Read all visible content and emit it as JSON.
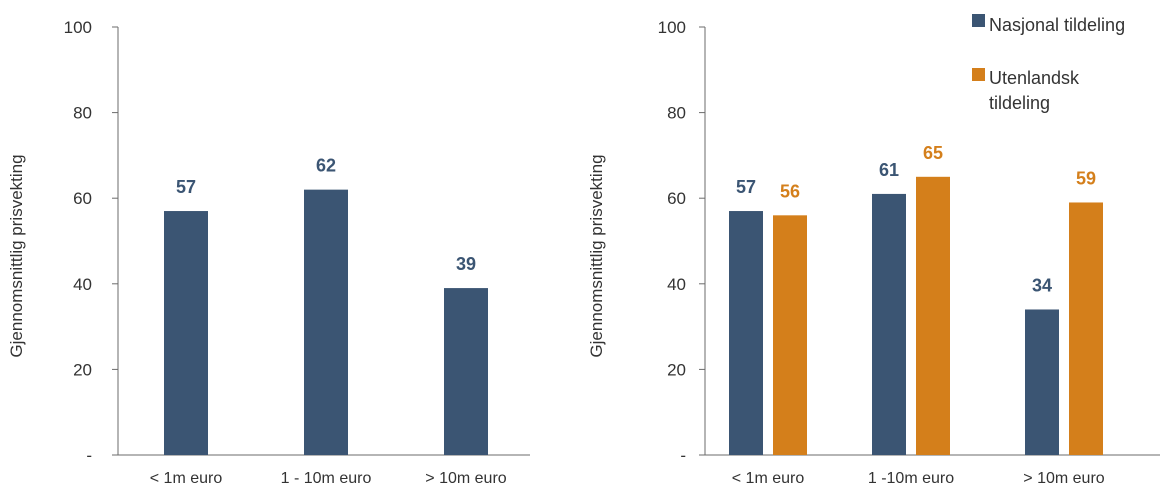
{
  "colors": {
    "nasjonal": "#3b5573",
    "utenlandsk": "#d47f1b",
    "axis": "#6b6b6b",
    "text": "#333333"
  },
  "chart_data": [
    {
      "type": "bar",
      "title": "",
      "xlabel": "",
      "ylabel": "Gjennomsnittlig prisvekting",
      "ylim": [
        0,
        100
      ],
      "yticks": [
        0,
        20,
        40,
        60,
        80,
        100
      ],
      "ytick_labels": [
        "-",
        "20",
        "40",
        "60",
        "80",
        "100"
      ],
      "categories": [
        "< 1m euro",
        "1 - 10m euro",
        "> 10m euro"
      ],
      "legend": null,
      "series": [
        {
          "values": [
            57,
            62,
            39
          ],
          "labels": [
            "57",
            "62",
            "39"
          ],
          "color": "#3b5573"
        }
      ]
    },
    {
      "type": "bar",
      "title": "",
      "xlabel": "",
      "ylabel": "Gjennomsnittlig prisvekting",
      "ylim": [
        0,
        100
      ],
      "yticks": [
        0,
        20,
        40,
        60,
        80,
        100
      ],
      "ytick_labels": [
        "-",
        "20",
        "40",
        "60",
        "80",
        "100"
      ],
      "categories": [
        "< 1m euro",
        "1 -10m euro",
        "> 10m euro"
      ],
      "legend": "top-right",
      "series": [
        {
          "name": "Nasjonal tildeling",
          "values": [
            57,
            61,
            34
          ],
          "labels": [
            "57",
            "61",
            "34"
          ],
          "color": "#3b5573"
        },
        {
          "name": "Utenlandsk tildeling",
          "values": [
            56,
            65,
            59
          ],
          "labels": [
            "56",
            "65",
            "59"
          ],
          "color": "#d47f1b"
        }
      ]
    }
  ]
}
